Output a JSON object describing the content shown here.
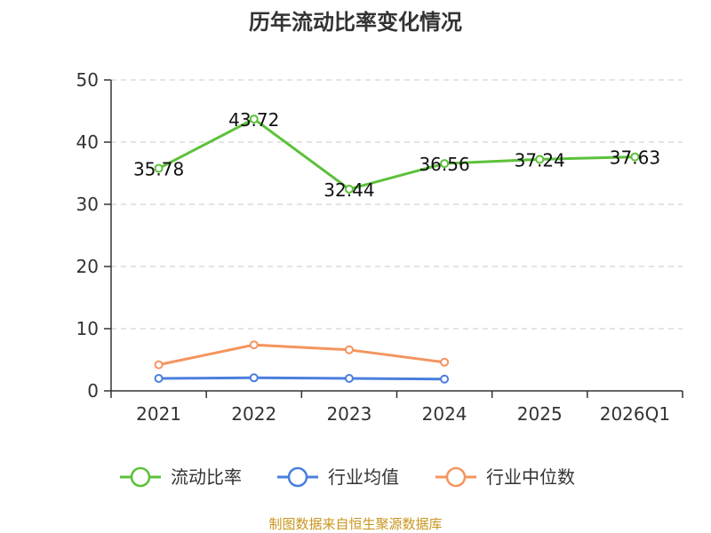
{
  "chart_data": {
    "type": "line",
    "title": "历年流动比率变化情况",
    "categories": [
      "2021",
      "2022",
      "2023",
      "2024",
      "2025",
      "2026Q1"
    ],
    "y_ticks": [
      "0",
      "10",
      "20",
      "30",
      "40",
      "50"
    ],
    "ylim": [
      0,
      50
    ],
    "grid": "horizontal dashed",
    "legend_position": "bottom",
    "series": [
      {
        "key": "current_ratio",
        "name": "流动比率",
        "color": "#5cc13a",
        "values": [
          35.78,
          43.72,
          32.44,
          36.56,
          37.24,
          37.63
        ],
        "labels": [
          "35.78",
          "43.72",
          "32.44",
          "36.56",
          "37.24",
          "37.63"
        ],
        "show_labels": true
      },
      {
        "key": "industry_mean",
        "name": "行业均值",
        "color": "#4a7fdc",
        "values": [
          2.0,
          2.1,
          2.0,
          1.9,
          null,
          null
        ],
        "show_labels": false
      },
      {
        "key": "industry_median",
        "name": "行业中位数",
        "color": "#f4945e",
        "values": [
          4.2,
          7.4,
          6.6,
          4.6,
          null,
          null
        ],
        "show_labels": false
      }
    ]
  },
  "source_text": "制图数据来自恒生聚源数据库",
  "source_color": "#c8961e"
}
